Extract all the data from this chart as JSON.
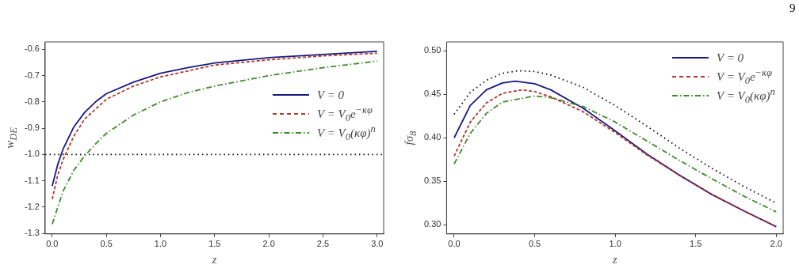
{
  "chart_data": [
    {
      "type": "line",
      "xlabel": "z",
      "ylabel": "w$_{DE}$",
      "xlim": [
        -0.065,
        3.06
      ],
      "ylim": [
        -1.302,
        -0.572
      ],
      "xticks": [
        {
          "value": 0,
          "label": "0.0"
        },
        0.5,
        {
          "value": 1,
          "label": "1.0"
        },
        1.5,
        {
          "value": 2,
          "label": "2.0"
        },
        2.5,
        {
          "value": 3,
          "label": "3.0"
        }
      ],
      "yticks": [
        -1.3,
        -1.2,
        -1.1,
        {
          "value": -1,
          "label": "-1.0"
        },
        -0.9,
        -0.8,
        -0.7,
        -0.6
      ],
      "grid": false,
      "legend": "right",
      "ref_lines": [
        {
          "axis": "y",
          "value": -1,
          "color": "#000000",
          "line_style": "dotted"
        }
      ],
      "series": [
        {
          "name": "V = 0",
          "color": "#1a1a80",
          "line_style": "solid",
          "x": [
            0,
            0.05,
            0.1,
            0.2,
            0.3,
            0.4,
            0.5,
            0.75,
            1,
            1.25,
            1.5,
            2,
            2.5,
            3
          ],
          "values": [
            -1.12,
            -1.04,
            -0.98,
            -0.895,
            -0.84,
            -0.8,
            -0.769,
            -0.725,
            -0.691,
            -0.67,
            -0.652,
            -0.632,
            -0.62,
            -0.608
          ]
        },
        {
          "name": "V = V$_{0}$e$^{−κφ}$",
          "color": "#b03a2e",
          "line_style": "dashed",
          "x": [
            0,
            0.05,
            0.1,
            0.15,
            0.2,
            0.3,
            0.5,
            0.75,
            1,
            1.5,
            2,
            2.5,
            3
          ],
          "values": [
            -1.17,
            -1.08,
            -1.02,
            -0.975,
            -0.93,
            -0.865,
            -0.79,
            -0.74,
            -0.705,
            -0.66,
            -0.64,
            -0.625,
            -0.615
          ]
        },
        {
          "name": "V = V$_{0}$(κφ)$^{n}$",
          "color": "#3d8c2a",
          "line_style": "dashdot",
          "x": [
            0,
            0.1,
            0.2,
            0.3,
            0.4,
            0.5,
            0.75,
            1,
            1.25,
            1.5,
            2,
            2.5,
            3
          ],
          "values": [
            -1.265,
            -1.14,
            -1.06,
            -1.005,
            -0.96,
            -0.92,
            -0.85,
            -0.8,
            -0.765,
            -0.74,
            -0.7,
            -0.67,
            -0.645
          ]
        }
      ]
    },
    {
      "type": "line",
      "xlabel": "z",
      "ylabel": "fσ$_{8}$",
      "xlim": [
        -0.047,
        2.043
      ],
      "ylim": [
        0.2897,
        0.51
      ],
      "xticks": [
        {
          "value": 0,
          "label": "0.0"
        },
        0.5,
        {
          "value": 1,
          "label": "1.0"
        },
        1.5,
        {
          "value": 2,
          "label": "2.0"
        }
      ],
      "yticks": [
        {
          "value": 0.3,
          "label": "0.30"
        },
        0.35,
        {
          "value": 0.4,
          "label": "0.40"
        },
        0.45,
        {
          "value": 0.5,
          "label": "0.50"
        }
      ],
      "grid": false,
      "legend": "top right",
      "annotations": [
        "9"
      ],
      "series": [
        {
          "name": "V = 0",
          "color": "#1a1a80",
          "line_style": "solid",
          "x": [
            0,
            0.1,
            0.2,
            0.3,
            0.38,
            0.5,
            0.6,
            0.8,
            1,
            1.2,
            1.4,
            1.6,
            1.8,
            2
          ],
          "values": [
            0.4,
            0.437,
            0.455,
            0.463,
            0.465,
            0.462,
            0.455,
            0.434,
            0.408,
            0.381,
            0.357,
            0.335,
            0.316,
            0.298
          ]
        },
        {
          "name": "V = V$_{0}$e$^{−κφ}$",
          "color": "#b03a2e",
          "line_style": "dashed",
          "x": [
            0,
            0.1,
            0.2,
            0.3,
            0.42,
            0.5,
            0.6,
            0.8,
            1,
            1.2,
            1.4,
            1.6,
            1.8,
            2
          ],
          "values": [
            0.379,
            0.418,
            0.44,
            0.451,
            0.455,
            0.453,
            0.447,
            0.43,
            0.406,
            0.38,
            0.357,
            0.335,
            0.316,
            0.298
          ]
        },
        {
          "name": "V = V$_{0}$(κφ)$^{n}$",
          "color": "#3d8c2a",
          "line_style": "dashdot",
          "x": [
            0,
            0.1,
            0.2,
            0.3,
            0.5,
            0.6,
            0.8,
            1,
            1.2,
            1.4,
            1.6,
            1.8,
            2
          ],
          "values": [
            0.37,
            0.405,
            0.428,
            0.441,
            0.448,
            0.446,
            0.436,
            0.418,
            0.396,
            0.374,
            0.353,
            0.333,
            0.315
          ]
        },
        {
          "color": "#000000",
          "line_style": "dotted",
          "x": [
            0,
            0.1,
            0.2,
            0.3,
            0.4,
            0.5,
            0.6,
            0.8,
            1,
            1.2,
            1.4,
            1.6,
            1.8,
            2
          ],
          "values": [
            0.427,
            0.452,
            0.466,
            0.474,
            0.477,
            0.476,
            0.472,
            0.458,
            0.437,
            0.413,
            0.388,
            0.365,
            0.344,
            0.325
          ]
        }
      ]
    }
  ]
}
